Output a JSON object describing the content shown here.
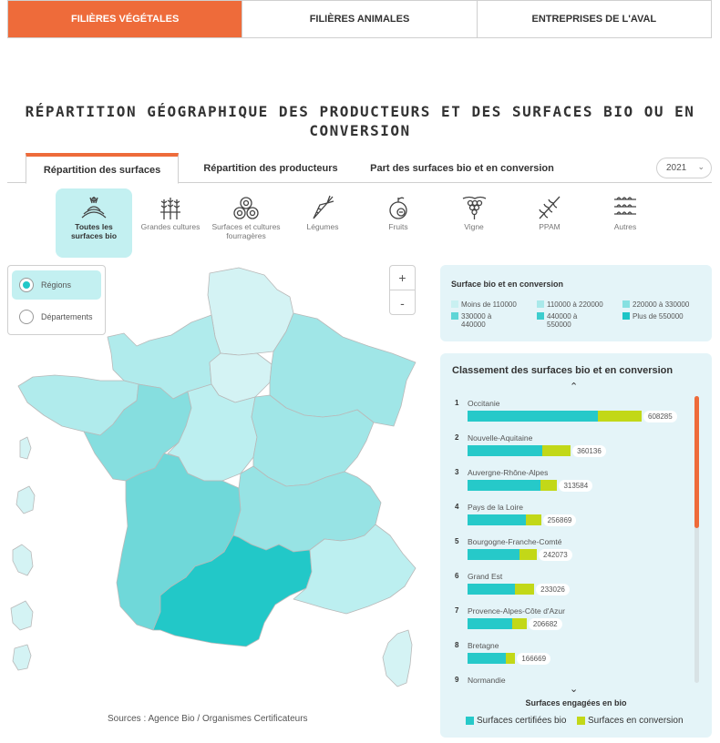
{
  "topnav": {
    "tabs": [
      {
        "label": "FILIÈRES VÉGÉTALES",
        "active": true
      },
      {
        "label": "FILIÈRES ANIMALES",
        "active": false
      },
      {
        "label": "ENTREPRISES DE L'AVAL",
        "active": false
      }
    ]
  },
  "page_title": "RÉPARTITION GÉOGRAPHIQUE DES PRODUCTEURS ET DES SURFACES BIO OU EN CONVERSION",
  "subtabs": [
    "Répartition des surfaces",
    "Répartition des producteurs",
    "Part des surfaces bio et en conversion"
  ],
  "year_select": {
    "value": "2021"
  },
  "categories": [
    {
      "label": "Toutes les surfaces bio",
      "icon": "field-icon"
    },
    {
      "label": "Grandes cultures",
      "icon": "wheat-icon"
    },
    {
      "label": "Surfaces et cultures fourragères",
      "icon": "hay-bales-icon"
    },
    {
      "label": "Légumes",
      "icon": "carrot-icon"
    },
    {
      "label": "Fruits",
      "icon": "apple-icon"
    },
    {
      "label": "Vigne",
      "icon": "grapes-icon"
    },
    {
      "label": "PPAM",
      "icon": "herb-icon"
    },
    {
      "label": "Autres",
      "icon": "rows-icon"
    }
  ],
  "map_view": {
    "options": [
      "Régions",
      "Départements"
    ],
    "selected": "Régions"
  },
  "zoom": {
    "in": "+",
    "out": "-"
  },
  "sources": "Sources : Agence Bio / Organismes Certificateurs",
  "legend": {
    "title": "Surface bio et en conversion",
    "items": [
      {
        "label": "Moins de 110000",
        "color": "#c9f0f1"
      },
      {
        "label": "110000 à 220000",
        "color": "#a9e9ea"
      },
      {
        "label": "220000 à 330000",
        "color": "#86e0e1"
      },
      {
        "label": "330000 à 440000",
        "color": "#5fd5d6"
      },
      {
        "label": "440000 à 550000",
        "color": "#3dcdce"
      },
      {
        "label": "Plus de 550000",
        "color": "#1ec5c6"
      }
    ]
  },
  "ranking": {
    "title": "Classement des surfaces bio et en conversion",
    "rows": [
      {
        "rank": "1",
        "name": "Occitanie",
        "value": "608285",
        "certified": 455000,
        "conversion": 153285
      },
      {
        "rank": "2",
        "name": "Nouvelle-Aquitaine",
        "value": "360136",
        "certified": 262000,
        "conversion": 98136
      },
      {
        "rank": "3",
        "name": "Auvergne-Rhône-Alpes",
        "value": "313584",
        "certified": 255000,
        "conversion": 58584
      },
      {
        "rank": "4",
        "name": "Pays de la Loire",
        "value": "256869",
        "certified": 205000,
        "conversion": 51869
      },
      {
        "rank": "5",
        "name": "Bourgogne-Franche-Comté",
        "value": "242073",
        "certified": 183000,
        "conversion": 59073
      },
      {
        "rank": "6",
        "name": "Grand Est",
        "value": "233026",
        "certified": 167000,
        "conversion": 66026
      },
      {
        "rank": "7",
        "name": "Provence-Alpes-Côte d'Azur",
        "value": "206682",
        "certified": 157000,
        "conversion": 49682
      },
      {
        "rank": "8",
        "name": "Bretagne",
        "value": "166669",
        "certified": 134000,
        "conversion": 32669
      },
      {
        "rank": "9",
        "name": "Normandie",
        "value": "",
        "certified": 0,
        "conversion": 0
      }
    ],
    "bio_label": "Surfaces engagées en bio",
    "legend_certified": "Surfaces certifiées bio",
    "legend_conversion": "Surfaces en conversion",
    "color_certified": "#26c9c9",
    "color_conversion": "#c2d818"
  },
  "colors": {
    "accent": "#ee6b3a",
    "teal": "#22c8c8",
    "panel": "#e4f4f8"
  }
}
